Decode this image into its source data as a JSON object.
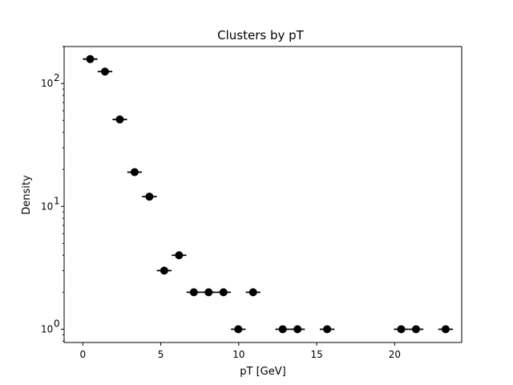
{
  "chart_data": {
    "type": "scatter",
    "title": "Clusters by pT",
    "xlabel": "pT [GeV]",
    "ylabel": "Density",
    "xlim": [
      -1.2,
      24.3
    ],
    "ylim": [
      0.78,
      200
    ],
    "yscale": "log",
    "grid": false,
    "legend": "none",
    "xticks": [
      {
        "value": 0,
        "label": "0"
      },
      {
        "value": 5,
        "label": "5"
      },
      {
        "value": 10,
        "label": "10"
      },
      {
        "value": 15,
        "label": "15"
      },
      {
        "value": 20,
        "label": "20"
      }
    ],
    "yticks": [
      {
        "value": 1,
        "base": "10",
        "exp": "0"
      },
      {
        "value": 10,
        "base": "10",
        "exp": "1"
      },
      {
        "value": 100,
        "base": "10",
        "exp": "2"
      }
    ],
    "series": [
      {
        "color": "#000000",
        "marker": "circle",
        "x_halfwidth": 0.47,
        "x": [
          0.47,
          1.42,
          2.37,
          3.32,
          4.27,
          5.22,
          6.17,
          7.12,
          8.07,
          9.02,
          9.97,
          10.92,
          12.82,
          13.77,
          15.67,
          20.42,
          21.37,
          23.27
        ],
        "y": [
          158,
          125,
          51,
          19,
          12,
          3,
          4,
          2,
          2,
          2,
          1,
          2,
          1,
          1,
          1,
          1,
          1,
          1
        ]
      }
    ]
  }
}
